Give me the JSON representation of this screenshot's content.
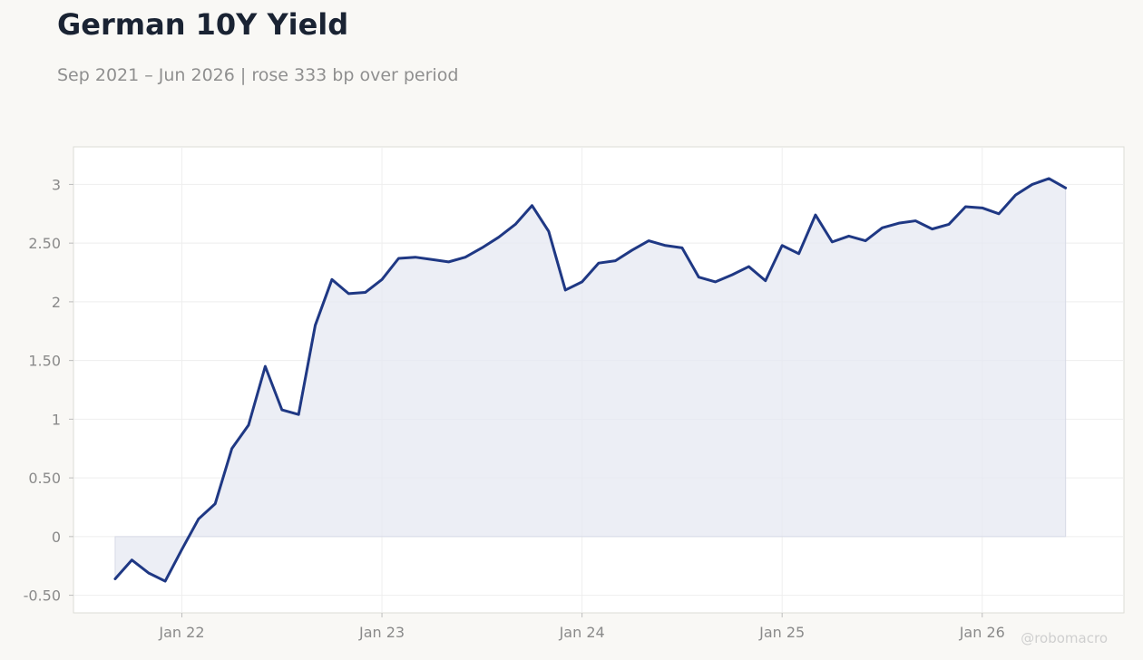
{
  "title": "German 10Y Yield",
  "subtitle": "Sep 2021 – Jun 2026 | rose 333 bp over period",
  "watermark": "@robomacro",
  "colors": {
    "background": "#f9f8f5",
    "plot_background": "#ffffff",
    "line": "#1f3884",
    "fill": "#e6e8f1",
    "title": "#1a2333",
    "subtitle": "#8f8f8f",
    "tick": "#8a8a8a",
    "grid": "#eeeeee",
    "frame": "#dcdcd6"
  },
  "chart_data": {
    "type": "area",
    "title": "German 10Y Yield",
    "subtitle": "Sep 2021 – Jun 2026 | rose 333 bp over period",
    "xlabel": "",
    "ylabel": "",
    "x_tick_labels": [
      "Jan 22",
      "Jan 23",
      "Jan 24",
      "Jan 25",
      "Jan 26"
    ],
    "x_tick_dates": [
      "2022-01",
      "2023-01",
      "2024-01",
      "2025-01",
      "2026-01"
    ],
    "y_tick_labels": [
      "-0.50",
      "0",
      "0.50",
      "1",
      "1.50",
      "2",
      "2.50",
      "3"
    ],
    "y_tick_values": [
      -0.5,
      0,
      0.5,
      1,
      1.5,
      2,
      2.5,
      3
    ],
    "xlim": [
      "2021-06",
      "2026-09"
    ],
    "ylim": [
      -0.65,
      3.32
    ],
    "grid": true,
    "legend": "none",
    "series": [
      {
        "x": [
          "2021-09",
          "2021-10",
          "2021-11",
          "2021-12",
          "2022-01",
          "2022-02",
          "2022-03",
          "2022-04",
          "2022-05",
          "2022-06",
          "2022-07",
          "2022-08",
          "2022-09",
          "2022-10",
          "2022-11",
          "2022-12",
          "2023-01",
          "2023-02",
          "2023-03",
          "2023-04",
          "2023-05",
          "2023-06",
          "2023-07",
          "2023-08",
          "2023-09",
          "2023-10",
          "2023-11",
          "2023-12",
          "2024-01",
          "2024-02",
          "2024-03",
          "2024-04",
          "2024-05",
          "2024-06",
          "2024-07",
          "2024-08",
          "2024-09",
          "2024-10",
          "2024-11",
          "2024-12",
          "2025-01",
          "2025-02",
          "2025-03",
          "2025-04",
          "2025-05",
          "2025-06",
          "2025-07",
          "2025-08",
          "2025-09",
          "2025-10",
          "2025-11",
          "2025-12",
          "2026-01",
          "2026-02",
          "2026-03",
          "2026-04",
          "2026-05",
          "2026-06"
        ],
        "values": [
          -0.36,
          -0.2,
          -0.31,
          -0.38,
          -0.11,
          0.15,
          0.28,
          0.75,
          0.95,
          1.45,
          1.08,
          1.04,
          1.8,
          2.19,
          2.07,
          2.08,
          2.19,
          2.37,
          2.38,
          2.36,
          2.34,
          2.38,
          2.46,
          2.55,
          2.66,
          2.82,
          2.6,
          2.1,
          2.17,
          2.33,
          2.35,
          2.44,
          2.52,
          2.48,
          2.46,
          2.21,
          2.17,
          2.23,
          2.3,
          2.18,
          2.48,
          2.41,
          2.74,
          2.51,
          2.56,
          2.52,
          2.63,
          2.67,
          2.69,
          2.62,
          2.66,
          2.81,
          2.8,
          2.75,
          2.91,
          3.0,
          3.05,
          2.97
        ]
      }
    ]
  }
}
